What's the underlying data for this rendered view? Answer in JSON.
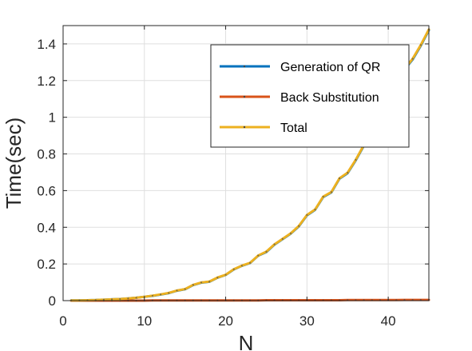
{
  "chart_data": {
    "type": "line",
    "title": "",
    "xlabel": "N",
    "ylabel": "Time(sec)",
    "xlim": [
      0,
      45
    ],
    "ylim": [
      0,
      1.5
    ],
    "xticks": [
      0,
      10,
      20,
      30,
      40
    ],
    "xtick_labels": [
      "0",
      "10",
      "20",
      "30",
      "40"
    ],
    "yticks": [
      0,
      0.2,
      0.4,
      0.6,
      0.8,
      1,
      1.2,
      1.4
    ],
    "ytick_labels": [
      "0",
      "0.2",
      "0.4",
      "0.6",
      "0.8",
      "1",
      "1.2",
      "1.4"
    ],
    "grid": true,
    "legend_position": "top-right",
    "x": [
      1,
      2,
      3,
      4,
      5,
      6,
      7,
      8,
      9,
      10,
      11,
      12,
      13,
      14,
      15,
      16,
      17,
      18,
      19,
      20,
      21,
      22,
      23,
      24,
      25,
      26,
      27,
      28,
      29,
      30,
      31,
      32,
      33,
      34,
      35,
      36,
      37,
      38,
      39,
      40,
      41,
      42,
      43,
      44,
      45
    ],
    "series": [
      {
        "name": "Generation of QR",
        "color": "#0072bd",
        "values": [
          0.001,
          0.001,
          0.002,
          0.003,
          0.005,
          0.007,
          0.009,
          0.012,
          0.016,
          0.021,
          0.026,
          0.033,
          0.041,
          0.054,
          0.062,
          0.085,
          0.098,
          0.103,
          0.125,
          0.14,
          0.17,
          0.19,
          0.205,
          0.245,
          0.265,
          0.305,
          0.335,
          0.365,
          0.405,
          0.465,
          0.495,
          0.565,
          0.59,
          0.665,
          0.695,
          0.765,
          0.845,
          0.9,
          1.0,
          1.08,
          1.2,
          1.26,
          1.315,
          1.39,
          1.475
        ]
      },
      {
        "name": "Back Substitution",
        "color": "#d95319",
        "values": [
          0.0,
          0.0,
          0.0,
          0.0,
          0.0,
          0.0,
          0.0,
          0.0,
          0.0,
          0.0,
          0.001,
          0.001,
          0.001,
          0.001,
          0.001,
          0.001,
          0.001,
          0.001,
          0.001,
          0.001,
          0.001,
          0.001,
          0.001,
          0.001,
          0.002,
          0.002,
          0.002,
          0.002,
          0.002,
          0.002,
          0.002,
          0.002,
          0.002,
          0.002,
          0.003,
          0.003,
          0.003,
          0.003,
          0.003,
          0.003,
          0.003,
          0.004,
          0.004,
          0.004,
          0.004
        ]
      },
      {
        "name": "Total",
        "color": "#edb120",
        "values": [
          0.001,
          0.001,
          0.002,
          0.003,
          0.005,
          0.007,
          0.009,
          0.012,
          0.016,
          0.021,
          0.027,
          0.034,
          0.042,
          0.055,
          0.063,
          0.086,
          0.099,
          0.104,
          0.126,
          0.141,
          0.171,
          0.191,
          0.206,
          0.246,
          0.267,
          0.307,
          0.337,
          0.367,
          0.407,
          0.467,
          0.497,
          0.567,
          0.592,
          0.667,
          0.698,
          0.768,
          0.848,
          0.903,
          1.003,
          1.083,
          1.203,
          1.264,
          1.319,
          1.394,
          1.479
        ]
      }
    ]
  }
}
